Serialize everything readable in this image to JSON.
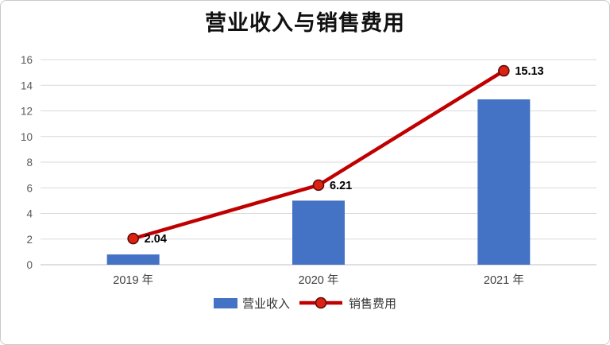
{
  "chart_data": {
    "type": "combo",
    "title": "营业收入与销售费用",
    "categories": [
      "2019 年",
      "2020 年",
      "2021 年"
    ],
    "series": [
      {
        "name": "营业收入",
        "type": "bar",
        "values": [
          0.8,
          5.0,
          12.9
        ]
      },
      {
        "name": "销售费用",
        "type": "line",
        "values": [
          2.04,
          6.21,
          15.13
        ],
        "data_labels": [
          "2.04",
          "6.21",
          "15.13"
        ]
      }
    ],
    "ylim": [
      0,
      16
    ],
    "ytick_step": 2,
    "yticks": [
      0,
      2,
      4,
      6,
      8,
      10,
      12,
      14,
      16
    ],
    "grid": true,
    "legend_position": "bottom"
  },
  "colors": {
    "bar": "#4472C4",
    "line": "#C00000",
    "marker_fill": "#DD2211",
    "marker_stroke": "#5A0E0E",
    "grid": "#D9D9D9",
    "axis": "#BFBFBF",
    "tick_text": "#595959",
    "category_text": "#3F3F3F",
    "label_text": "#000000"
  }
}
